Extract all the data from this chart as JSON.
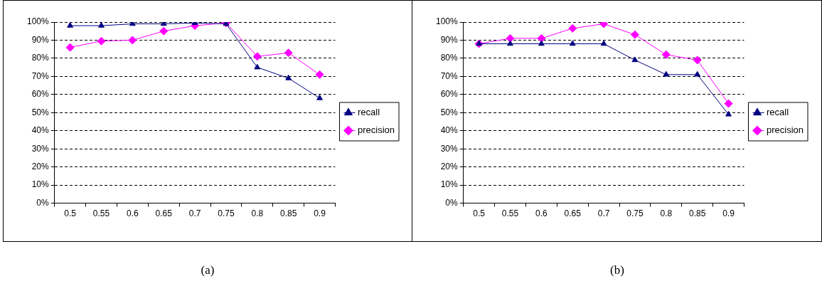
{
  "chart_data": [
    {
      "type": "line",
      "categories": [
        "0.5",
        "0.55",
        "0.6",
        "0.65",
        "0.7",
        "0.75",
        "0.8",
        "0.85",
        "0.9"
      ],
      "series": [
        {
          "name": "recall",
          "color": "#000080",
          "marker": "triangle",
          "values": [
            98,
            98,
            99,
            99,
            99.5,
            99,
            75,
            69,
            58
          ]
        },
        {
          "name": "precision",
          "color": "#ff00ff",
          "marker": "diamond",
          "values": [
            86,
            89.5,
            90,
            95,
            98,
            99.5,
            81,
            83,
            71
          ]
        }
      ],
      "ylim": [
        0,
        100
      ],
      "yticks": [
        {
          "value": 0,
          "label": "0%"
        },
        {
          "value": 10,
          "label": "10%"
        },
        {
          "value": 20,
          "label": "20%"
        },
        {
          "value": 30,
          "label": "30%"
        },
        {
          "value": 40,
          "label": "40%"
        },
        {
          "value": 50,
          "label": "50%"
        },
        {
          "value": 60,
          "label": "60%"
        },
        {
          "value": 70,
          "label": "70%"
        },
        {
          "value": 80,
          "label": "80%"
        },
        {
          "value": 90,
          "label": "90%"
        },
        {
          "value": 100,
          "label": "100%"
        }
      ],
      "grid": "y",
      "line_style": "solid",
      "legend": "right",
      "annotations": [
        "(a)"
      ]
    },
    {
      "type": "line",
      "categories": [
        "0.5",
        "0.55",
        "0.6",
        "0.65",
        "0.7",
        "0.75",
        "0.8",
        "0.85",
        "0.9"
      ],
      "series": [
        {
          "name": "recall",
          "color": "#000080",
          "marker": "triangle",
          "values": [
            88,
            88,
            88,
            88,
            88,
            79,
            71,
            71,
            49
          ]
        },
        {
          "name": "precision",
          "color": "#ff00ff",
          "marker": "diamond",
          "values": [
            88,
            91,
            91,
            96.5,
            99,
            93,
            82,
            79,
            55
          ]
        }
      ],
      "ylim": [
        0,
        100
      ],
      "yticks": [
        {
          "value": 0,
          "label": "0%"
        },
        {
          "value": 10,
          "label": "10%"
        },
        {
          "value": 20,
          "label": "20%"
        },
        {
          "value": 30,
          "label": "30%"
        },
        {
          "value": 40,
          "label": "40%"
        },
        {
          "value": 50,
          "label": "50%"
        },
        {
          "value": 60,
          "label": "60%"
        },
        {
          "value": 70,
          "label": "70%"
        },
        {
          "value": 80,
          "label": "80%"
        },
        {
          "value": 90,
          "label": "90%"
        },
        {
          "value": 100,
          "label": "100%"
        }
      ],
      "grid": "y",
      "line_style": "solid",
      "legend": "right",
      "annotations": [
        "(b)"
      ]
    }
  ]
}
